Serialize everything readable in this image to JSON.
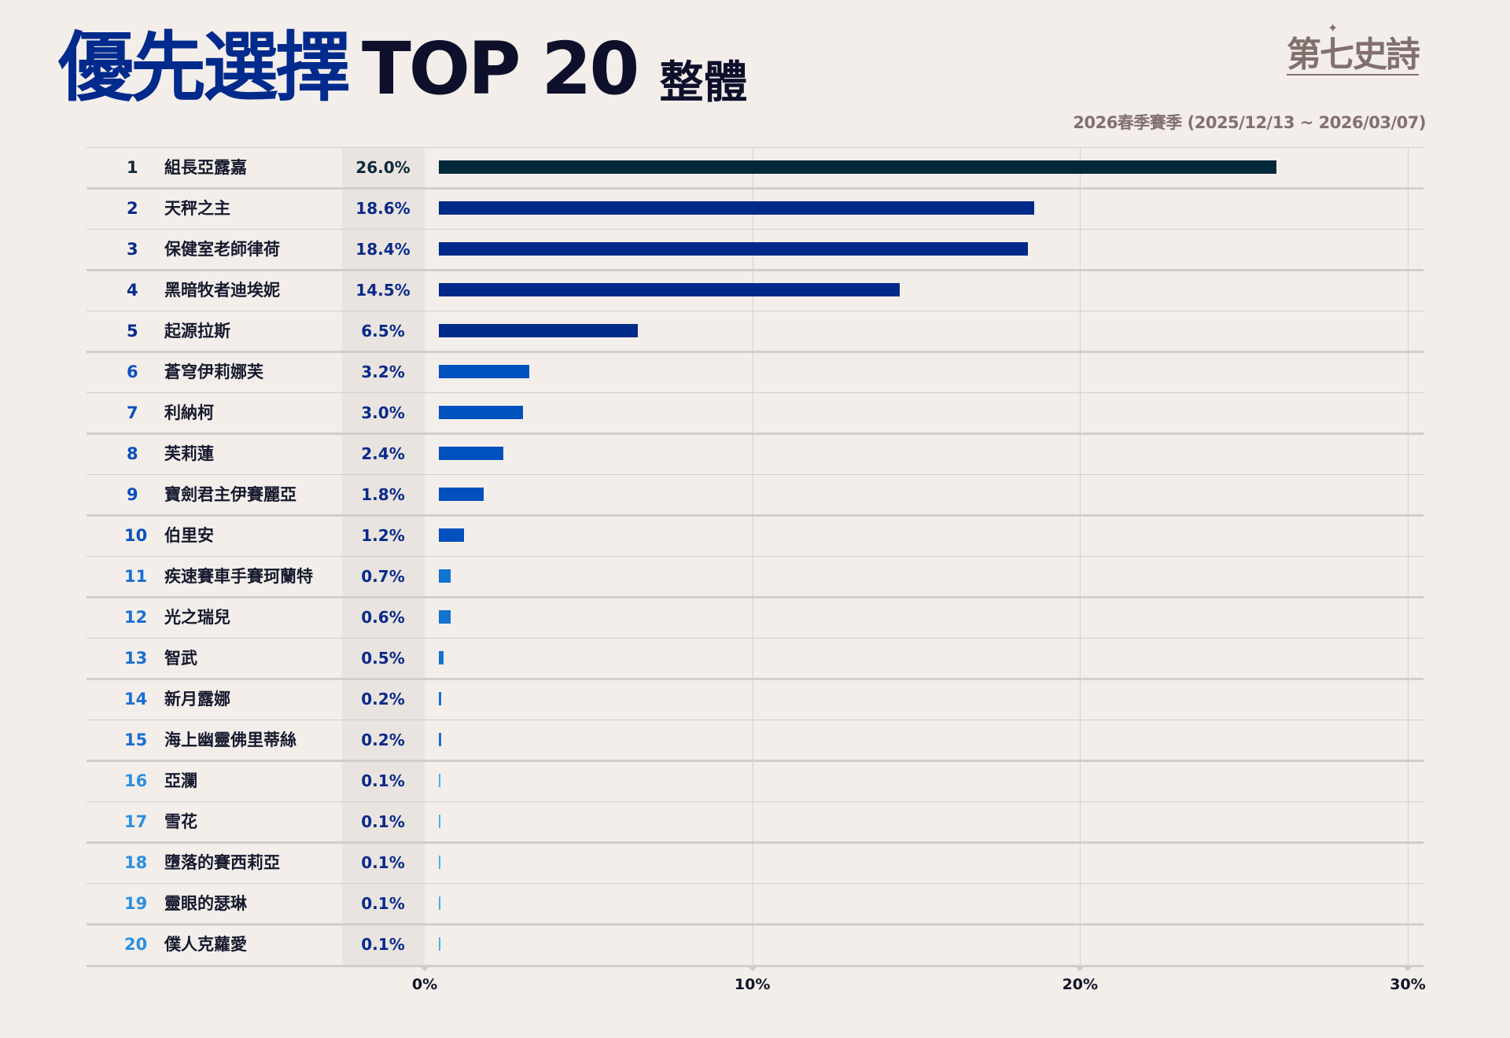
{
  "header": {
    "title_zh": "優先選擇",
    "title_en": "TOP 20",
    "subtitle": "整體",
    "logo": "第七史詩",
    "season": "2026春季賽季 (2025/12/13 ~ 2026/03/07)"
  },
  "chart_data": {
    "type": "bar",
    "orientation": "horizontal",
    "title": "優先選擇 TOP 20 整體",
    "xlim": [
      0,
      30
    ],
    "xticks": [
      "0%",
      "10%",
      "20%",
      "30%"
    ],
    "xtick_values": [
      0,
      10,
      20,
      30
    ],
    "grid": true,
    "categories": [
      "組長亞露嘉",
      "天秤之主",
      "保健室老師律荷",
      "黑暗牧者迪埃妮",
      "起源拉斯",
      "蒼穹伊莉娜芙",
      "利納柯",
      "芙莉蓮",
      "寶劍君主伊賽麗亞",
      "伯里安",
      "疾速賽車手賽珂蘭特",
      "光之瑞兒",
      "智武",
      "新月露娜",
      "海上幽靈佛里蒂絲",
      "亞瀾",
      "雪花",
      "墮落的賽西莉亞",
      "靈眼的瑟琳",
      "僕人克蘿愛"
    ],
    "ranks": [
      "1",
      "2",
      "3",
      "4",
      "5",
      "6",
      "7",
      "8",
      "9",
      "10",
      "11",
      "12",
      "13",
      "14",
      "15",
      "16",
      "17",
      "18",
      "19",
      "20"
    ],
    "values": [
      26.0,
      18.6,
      18.4,
      14.5,
      6.5,
      3.2,
      3.0,
      2.4,
      1.8,
      1.2,
      0.7,
      0.6,
      0.5,
      0.2,
      0.2,
      0.1,
      0.1,
      0.1,
      0.1,
      0.1
    ],
    "labels": [
      "26.0%",
      "18.6%",
      "18.4%",
      "14.5%",
      "6.5%",
      "3.2%",
      "3.0%",
      "2.4%",
      "1.8%",
      "1.2%",
      "0.7%",
      "0.6%",
      "0.5%",
      "0.2%",
      "0.2%",
      "0.1%",
      "0.1%",
      "0.1%",
      "0.1%",
      "0.1%"
    ],
    "tier_colors": [
      "#002a3a",
      "#002a8a",
      "#0050be",
      "#1273d0",
      "#40b4e6"
    ],
    "rank_colors": [
      "#0e2a3a",
      "#0a2a8a",
      "#0a50be",
      "#1a6ed0",
      "#2a90e0"
    ]
  }
}
